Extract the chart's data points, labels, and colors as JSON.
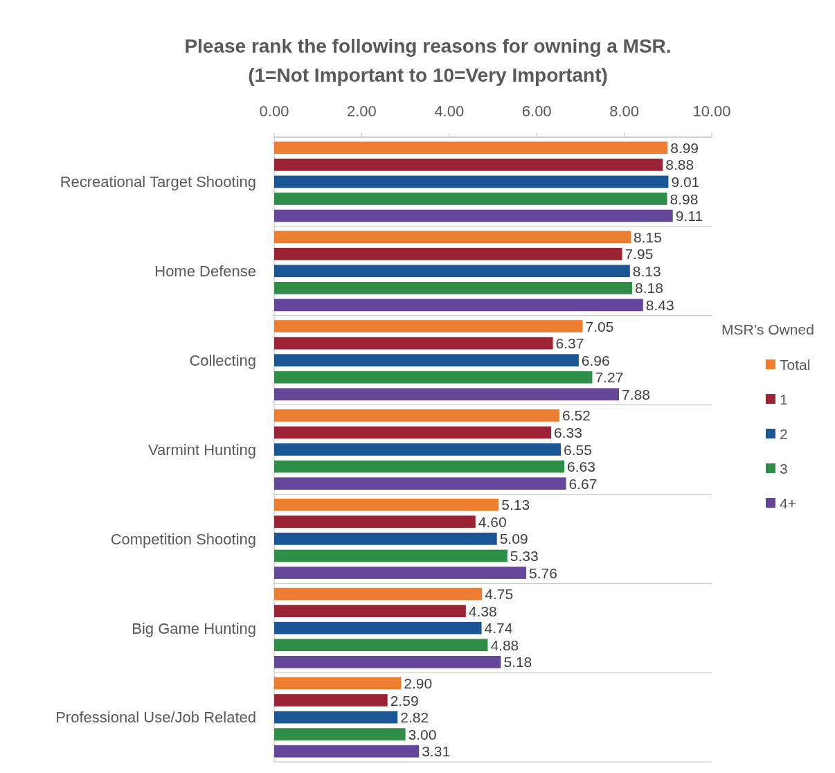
{
  "chart_data": {
    "type": "bar",
    "orientation": "horizontal",
    "title": "Please rank the following reasons for owning a MSR.\n(1=Not Important to 10=Very Important)",
    "categories": [
      "Recreational Target Shooting",
      "Home Defense",
      "Collecting",
      "Varmint Hunting",
      "Competition Shooting",
      "Big Game Hunting",
      "Professional Use/Job Related"
    ],
    "series": [
      {
        "name": "Total",
        "color": "#ed7d31",
        "values": [
          8.99,
          8.15,
          7.05,
          6.52,
          5.13,
          4.75,
          2.9
        ],
        "value_labels": [
          "8.99",
          "8.15",
          "7.05",
          "6.52",
          "5.13",
          "4.75",
          "2.90"
        ]
      },
      {
        "name": "1",
        "color": "#9b2335",
        "values": [
          8.88,
          7.95,
          6.37,
          6.33,
          4.6,
          4.38,
          2.59
        ],
        "value_labels": [
          "8.88",
          "7.95",
          "6.37",
          "6.33",
          "4.60",
          "4.38",
          "2.59"
        ]
      },
      {
        "name": "2",
        "color": "#1b5796",
        "values": [
          9.01,
          8.13,
          6.96,
          6.55,
          5.09,
          4.74,
          2.82
        ],
        "value_labels": [
          "9.01",
          "8.13",
          "6.96",
          "6.55",
          "5.09",
          "4.74",
          "2.82"
        ]
      },
      {
        "name": "3",
        "color": "#2f8f48",
        "values": [
          8.98,
          8.18,
          7.27,
          6.63,
          5.33,
          4.88,
          3.0
        ],
        "value_labels": [
          "8.98",
          "8.18",
          "7.27",
          "6.63",
          "5.33",
          "4.88",
          "3.00"
        ]
      },
      {
        "name": "4+",
        "color": "#64479a",
        "values": [
          9.11,
          8.43,
          7.88,
          6.67,
          5.76,
          5.18,
          3.31
        ],
        "value_labels": [
          "9.11",
          "8.43",
          "7.88",
          "6.67",
          "5.76",
          "5.18",
          "3.31"
        ]
      }
    ],
    "xlim": [
      0,
      10
    ],
    "xticks": [
      {
        "value": 0,
        "label": "0.00"
      },
      {
        "value": 2,
        "label": "2.00"
      },
      {
        "value": 4,
        "label": "4.00"
      },
      {
        "value": 6,
        "label": "6.00"
      },
      {
        "value": 8,
        "label": "8.00"
      },
      {
        "value": 10,
        "label": "10.00"
      }
    ],
    "legend_title": "MSR’s Owned",
    "legend": "right",
    "grid": "y"
  }
}
